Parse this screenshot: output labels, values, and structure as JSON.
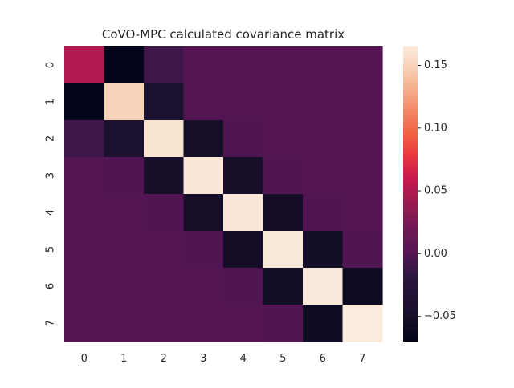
{
  "chart_data": {
    "type": "heatmap",
    "title": "CoVO-MPC calculated covariance matrix",
    "xlabel": "",
    "ylabel": "",
    "x_tick_labels": [
      "0",
      "1",
      "2",
      "3",
      "4",
      "5",
      "6",
      "7"
    ],
    "y_tick_labels": [
      "0",
      "1",
      "2",
      "3",
      "4",
      "5",
      "6",
      "7"
    ],
    "matrix": [
      [
        0.05,
        -0.07,
        -0.01,
        0.0,
        0.0,
        0.0,
        0.0,
        0.0
      ],
      [
        -0.07,
        0.15,
        -0.045,
        0.0,
        0.0,
        0.0,
        0.0,
        0.0
      ],
      [
        -0.01,
        -0.045,
        0.16,
        -0.05,
        -0.002,
        0.0,
        0.0,
        0.0
      ],
      [
        0.0,
        -0.002,
        -0.05,
        0.162,
        -0.05,
        -0.002,
        0.0,
        0.0
      ],
      [
        0.0,
        0.0,
        -0.002,
        -0.05,
        0.162,
        -0.052,
        -0.002,
        0.0
      ],
      [
        0.0,
        0.0,
        0.0,
        -0.002,
        -0.052,
        0.163,
        -0.055,
        -0.002
      ],
      [
        0.0,
        0.0,
        0.0,
        0.0,
        -0.002,
        -0.055,
        0.164,
        -0.058
      ],
      [
        0.0,
        0.0,
        0.0,
        0.0,
        0.0,
        -0.002,
        -0.058,
        0.165
      ]
    ],
    "colorbar": {
      "vmin": -0.07,
      "vmax": 0.165,
      "ticks": [
        -0.05,
        0.0,
        0.05,
        0.1,
        0.15
      ],
      "tick_labels": [
        "−0.05",
        "0.00",
        "0.05",
        "0.10",
        "0.15"
      ],
      "colormap": "rocket"
    },
    "grid": false
  }
}
